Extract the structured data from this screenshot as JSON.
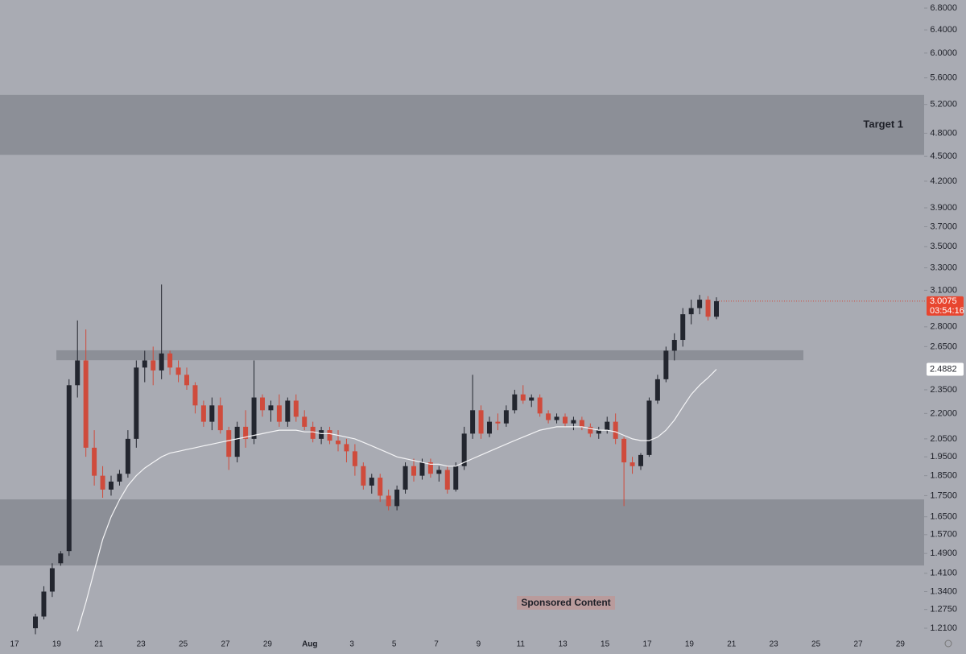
{
  "chart_data": {
    "type": "candlestick",
    "log_scale": true,
    "ylim": [
      1.17,
      6.955
    ],
    "yticks": [
      {
        "value": 6.8,
        "label": "6.8000"
      },
      {
        "value": 6.4,
        "label": "6.4000"
      },
      {
        "value": 6.0,
        "label": "6.0000"
      },
      {
        "value": 5.6,
        "label": "5.6000"
      },
      {
        "value": 5.2,
        "label": "5.2000"
      },
      {
        "value": 4.8,
        "label": "4.8000"
      },
      {
        "value": 4.5,
        "label": "4.5000"
      },
      {
        "value": 4.2,
        "label": "4.2000"
      },
      {
        "value": 3.9,
        "label": "3.9000"
      },
      {
        "value": 3.7,
        "label": "3.7000"
      },
      {
        "value": 3.5,
        "label": "3.5000"
      },
      {
        "value": 3.3,
        "label": "3.3000"
      },
      {
        "value": 3.1,
        "label": "3.1000"
      },
      {
        "value": 2.8,
        "label": "2.8000"
      },
      {
        "value": 2.65,
        "label": "2.6500"
      },
      {
        "value": 2.35,
        "label": "2.3500"
      },
      {
        "value": 2.2,
        "label": "2.2000"
      },
      {
        "value": 2.05,
        "label": "2.0500"
      },
      {
        "value": 1.95,
        "label": "1.9500"
      },
      {
        "value": 1.85,
        "label": "1.8500"
      },
      {
        "value": 1.75,
        "label": "1.7500"
      },
      {
        "value": 1.65,
        "label": "1.6500"
      },
      {
        "value": 1.57,
        "label": "1.5700"
      },
      {
        "value": 1.49,
        "label": "1.4900"
      },
      {
        "value": 1.41,
        "label": "1.4100"
      },
      {
        "value": 1.34,
        "label": "1.3400"
      },
      {
        "value": 1.275,
        "label": "1.2750"
      },
      {
        "value": 1.21,
        "label": "1.2100"
      }
    ],
    "xlabels": [
      "17",
      "19",
      "21",
      "23",
      "25",
      "27",
      "29",
      "Aug",
      "3",
      "5",
      "7",
      "9",
      "11",
      "13",
      "15",
      "17",
      "19",
      "21",
      "23",
      "25",
      "27",
      "29"
    ],
    "up_color": "#23262f",
    "down_color": "#cf4b3c",
    "ma_color": "#f4f4f6",
    "zone_color": "#8c8f97",
    "zones": [
      {
        "low": 4.52,
        "high": 5.34,
        "label": "Target 1"
      },
      {
        "low": 2.552,
        "high": 2.623
      },
      {
        "low": 1.441,
        "high": 1.732
      }
    ],
    "ohlc": [
      [
        1.21,
        1.26,
        1.19,
        1.25
      ],
      [
        1.25,
        1.36,
        1.24,
        1.34
      ],
      [
        1.34,
        1.45,
        1.32,
        1.43
      ],
      [
        1.45,
        1.5,
        1.44,
        1.49
      ],
      [
        1.5,
        2.42,
        1.48,
        2.38
      ],
      [
        2.38,
        2.85,
        2.3,
        2.55
      ],
      [
        2.55,
        2.78,
        1.95,
        2.0
      ],
      [
        2.0,
        2.1,
        1.8,
        1.85
      ],
      [
        1.85,
        1.9,
        1.74,
        1.78
      ],
      [
        1.78,
        1.85,
        1.75,
        1.82
      ],
      [
        1.82,
        1.88,
        1.8,
        1.86
      ],
      [
        1.86,
        2.1,
        1.84,
        2.05
      ],
      [
        2.05,
        2.55,
        2.0,
        2.5
      ],
      [
        2.5,
        2.62,
        2.4,
        2.55
      ],
      [
        2.55,
        2.65,
        2.38,
        2.48
      ],
      [
        2.48,
        3.15,
        2.42,
        2.6
      ],
      [
        2.6,
        2.62,
        2.45,
        2.5
      ],
      [
        2.5,
        2.55,
        2.4,
        2.45
      ],
      [
        2.45,
        2.5,
        2.35,
        2.38
      ],
      [
        2.38,
        2.4,
        2.2,
        2.25
      ],
      [
        2.25,
        2.28,
        2.12,
        2.15
      ],
      [
        2.15,
        2.3,
        2.1,
        2.25
      ],
      [
        2.25,
        2.3,
        2.08,
        2.1
      ],
      [
        2.1,
        2.12,
        1.88,
        1.95
      ],
      [
        1.95,
        2.15,
        1.92,
        2.12
      ],
      [
        2.12,
        2.22,
        2.0,
        2.05
      ],
      [
        2.05,
        2.55,
        2.02,
        2.3
      ],
      [
        2.3,
        2.32,
        2.18,
        2.22
      ],
      [
        2.22,
        2.28,
        2.15,
        2.25
      ],
      [
        2.25,
        2.32,
        2.12,
        2.15
      ],
      [
        2.15,
        2.3,
        2.12,
        2.28
      ],
      [
        2.28,
        2.32,
        2.15,
        2.18
      ],
      [
        2.18,
        2.22,
        2.1,
        2.12
      ],
      [
        2.12,
        2.15,
        2.03,
        2.05
      ],
      [
        2.05,
        2.12,
        2.02,
        2.1
      ],
      [
        2.1,
        2.12,
        2.02,
        2.04
      ],
      [
        2.04,
        2.1,
        1.98,
        2.02
      ],
      [
        2.02,
        2.05,
        1.92,
        1.98
      ],
      [
        1.98,
        2.02,
        1.85,
        1.9
      ],
      [
        1.9,
        1.92,
        1.78,
        1.8
      ],
      [
        1.8,
        1.86,
        1.76,
        1.84
      ],
      [
        1.84,
        1.86,
        1.72,
        1.75
      ],
      [
        1.75,
        1.78,
        1.68,
        1.7
      ],
      [
        1.7,
        1.8,
        1.68,
        1.78
      ],
      [
        1.78,
        1.92,
        1.76,
        1.9
      ],
      [
        1.9,
        1.94,
        1.82,
        1.85
      ],
      [
        1.85,
        1.94,
        1.83,
        1.92
      ],
      [
        1.92,
        1.94,
        1.84,
        1.86
      ],
      [
        1.86,
        1.9,
        1.82,
        1.88
      ],
      [
        1.88,
        1.9,
        1.76,
        1.78
      ],
      [
        1.78,
        1.92,
        1.77,
        1.9
      ],
      [
        1.9,
        2.12,
        1.88,
        2.08
      ],
      [
        2.08,
        2.45,
        2.05,
        2.22
      ],
      [
        2.22,
        2.25,
        2.05,
        2.08
      ],
      [
        2.08,
        2.18,
        2.06,
        2.15
      ],
      [
        2.15,
        2.2,
        2.1,
        2.14
      ],
      [
        2.14,
        2.25,
        2.12,
        2.22
      ],
      [
        2.22,
        2.35,
        2.2,
        2.32
      ],
      [
        2.32,
        2.38,
        2.26,
        2.28
      ],
      [
        2.28,
        2.32,
        2.24,
        2.3
      ],
      [
        2.3,
        2.32,
        2.18,
        2.2
      ],
      [
        2.2,
        2.22,
        2.14,
        2.16
      ],
      [
        2.16,
        2.2,
        2.14,
        2.18
      ],
      [
        2.18,
        2.2,
        2.12,
        2.14
      ],
      [
        2.14,
        2.18,
        2.1,
        2.16
      ],
      [
        2.16,
        2.18,
        2.1,
        2.12
      ],
      [
        2.12,
        2.14,
        2.06,
        2.08
      ],
      [
        2.08,
        2.12,
        2.05,
        2.1
      ],
      [
        2.1,
        2.18,
        2.08,
        2.15
      ],
      [
        2.15,
        2.2,
        2.02,
        2.05
      ],
      [
        2.05,
        2.06,
        1.7,
        1.92
      ],
      [
        1.92,
        1.95,
        1.86,
        1.9
      ],
      [
        1.9,
        1.97,
        1.88,
        1.96
      ],
      [
        1.96,
        2.3,
        1.95,
        2.28
      ],
      [
        2.28,
        2.45,
        2.26,
        2.42
      ],
      [
        2.42,
        2.65,
        2.4,
        2.62
      ],
      [
        2.62,
        2.75,
        2.55,
        2.7
      ],
      [
        2.7,
        2.95,
        2.65,
        2.9
      ],
      [
        2.9,
        3.02,
        2.82,
        2.95
      ],
      [
        2.95,
        3.06,
        2.9,
        3.02
      ],
      [
        3.02,
        3.05,
        2.85,
        2.88
      ],
      [
        2.88,
        3.04,
        2.86,
        3.0075
      ]
    ],
    "ma": [
      null,
      null,
      null,
      null,
      null,
      1.2,
      1.3,
      1.42,
      1.55,
      1.65,
      1.73,
      1.8,
      1.85,
      1.89,
      1.92,
      1.95,
      1.97,
      1.98,
      1.99,
      2.0,
      2.01,
      2.02,
      2.03,
      2.04,
      2.05,
      2.06,
      2.07,
      2.08,
      2.09,
      2.1,
      2.1,
      2.1,
      2.09,
      2.09,
      2.08,
      2.08,
      2.07,
      2.06,
      2.05,
      2.03,
      2.01,
      1.99,
      1.97,
      1.95,
      1.94,
      1.93,
      1.92,
      1.91,
      1.91,
      1.9,
      1.9,
      1.92,
      1.94,
      1.96,
      1.98,
      2.0,
      2.02,
      2.04,
      2.06,
      2.08,
      2.1,
      2.11,
      2.12,
      2.12,
      2.12,
      2.12,
      2.11,
      2.1,
      2.1,
      2.09,
      2.07,
      2.05,
      2.04,
      2.04,
      2.06,
      2.1,
      2.16,
      2.24,
      2.32,
      2.38,
      2.43,
      2.4882
    ],
    "last_price_label": "3.0075",
    "countdown": "03:54:16",
    "ma_label": "2.4882",
    "annotation": "Sponsored Content"
  }
}
